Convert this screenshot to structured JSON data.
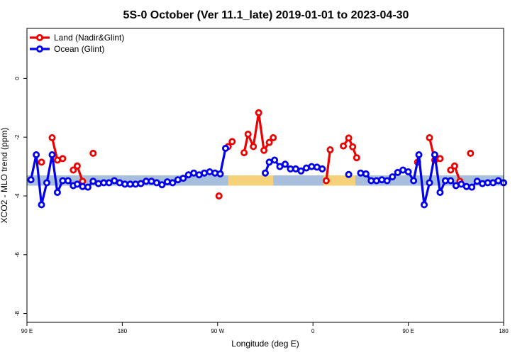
{
  "chart_data": {
    "type": "line",
    "title": "5S-0 October (Ver 11.1_late)   2019-01-01 to 2023-04-30",
    "xlabel": "Longitude (deg E)",
    "ylabel": "XCO2 - MLO trend (ppm)",
    "xlim": [
      0,
      360
    ],
    "ylim": [
      -8.3,
      1.7
    ],
    "x_ticks": [
      {
        "value": 0,
        "label": "90 E"
      },
      {
        "value": 72,
        "label": "180"
      },
      {
        "value": 144,
        "label": "90 W"
      },
      {
        "value": 216,
        "label": "0"
      },
      {
        "value": 288,
        "label": "90 E"
      },
      {
        "value": 360,
        "label": "180"
      }
    ],
    "y_ticks": [
      {
        "value": 0,
        "label": "0"
      },
      {
        "value": -2,
        "label": "-2"
      },
      {
        "value": -4,
        "label": "-4"
      },
      {
        "value": -6,
        "label": "-6"
      },
      {
        "value": -8,
        "label": "-8"
      }
    ],
    "legend": {
      "placement": "top-left",
      "entries": [
        {
          "name": "Land (Nadir&Glint)",
          "color": "#ee0000"
        },
        {
          "name": "Ocean (Glint)",
          "color": "#0000ee"
        }
      ]
    },
    "background_band": {
      "y_range": [
        -3.65,
        -3.3
      ],
      "color": "#a8bedd",
      "land_color": "#f5d27a",
      "land_x_ranges": [
        [
          152,
          186
        ],
        [
          224,
          248
        ]
      ]
    },
    "series": [
      {
        "name": "Land (Nadir&Glint)",
        "color": "#ee0000",
        "segments": [
          [
            [
              11,
              -2.85
            ]
          ],
          [
            [
              19,
              -2.02
            ],
            [
              23,
              -2.78
            ],
            [
              27,
              -2.73
            ]
          ],
          [
            [
              35,
              -3.12
            ],
            [
              38,
              -2.98
            ],
            [
              42,
              -3.5
            ]
          ],
          [
            [
              50,
              -2.55
            ]
          ],
          [
            [
              145,
              -4.0
            ]
          ],
          [
            [
              152,
              -2.32
            ],
            [
              155,
              -2.15
            ]
          ],
          [
            [
              164,
              -2.53
            ],
            [
              167,
              -1.9
            ],
            [
              171,
              -2.32
            ],
            [
              175,
              -1.17
            ],
            [
              179,
              -2.45
            ],
            [
              183,
              -2.18
            ],
            [
              186,
              -2.02
            ]
          ],
          [
            [
              226,
              -3.48
            ],
            [
              229,
              -2.43
            ]
          ],
          [
            [
              239,
              -2.3
            ],
            [
              243,
              -2.03
            ],
            [
              246,
              -2.33
            ],
            [
              249,
              -2.7
            ]
          ],
          [
            [
              295,
              -2.85
            ]
          ],
          [
            [
              304,
              -2.02
            ],
            [
              308,
              -2.78
            ],
            [
              312,
              -2.73
            ]
          ],
          [
            [
              320,
              -3.12
            ],
            [
              323,
              -2.98
            ],
            [
              327,
              -3.5
            ]
          ],
          [
            [
              335,
              -2.55
            ]
          ]
        ]
      },
      {
        "name": "Ocean (Glint)",
        "color": "#0000ee",
        "segments": [
          [
            [
              3,
              -3.45
            ],
            [
              7,
              -2.6
            ],
            [
              11,
              -4.3
            ],
            [
              15,
              -3.55
            ],
            [
              19,
              -2.6
            ],
            [
              23,
              -3.88
            ],
            [
              27,
              -3.48
            ],
            [
              31,
              -3.48
            ],
            [
              35,
              -3.65
            ],
            [
              38,
              -3.6
            ],
            [
              42,
              -3.68
            ],
            [
              46,
              -3.7
            ],
            [
              50,
              -3.5
            ],
            [
              54,
              -3.58
            ],
            [
              58,
              -3.55
            ],
            [
              62,
              -3.55
            ],
            [
              66,
              -3.48
            ],
            [
              70,
              -3.55
            ],
            [
              74,
              -3.6
            ],
            [
              78,
              -3.6
            ],
            [
              82,
              -3.6
            ],
            [
              86,
              -3.58
            ],
            [
              90,
              -3.5
            ],
            [
              94,
              -3.5
            ],
            [
              98,
              -3.55
            ],
            [
              102,
              -3.62
            ],
            [
              106,
              -3.52
            ],
            [
              110,
              -3.55
            ],
            [
              114,
              -3.45
            ],
            [
              118,
              -3.4
            ],
            [
              122,
              -3.28
            ],
            [
              126,
              -3.22
            ],
            [
              130,
              -3.28
            ],
            [
              134,
              -3.22
            ],
            [
              138,
              -3.18
            ],
            [
              142,
              -3.22
            ],
            [
              146,
              -3.25
            ],
            [
              150,
              -2.38
            ]
          ],
          [
            [
              180,
              -3.22
            ],
            [
              183,
              -2.85
            ],
            [
              187,
              -2.78
            ],
            [
              191,
              -3.0
            ],
            [
              195,
              -2.92
            ],
            [
              199,
              -3.08
            ],
            [
              203,
              -3.08
            ],
            [
              207,
              -3.15
            ],
            [
              211,
              -3.05
            ],
            [
              215,
              -3.0
            ],
            [
              219,
              -3.02
            ],
            [
              223,
              -3.08
            ]
          ],
          [
            [
              243,
              -3.27
            ]
          ],
          [
            [
              252,
              -3.22
            ],
            [
              256,
              -3.25
            ],
            [
              260,
              -3.48
            ],
            [
              264,
              -3.48
            ],
            [
              268,
              -3.45
            ],
            [
              272,
              -3.48
            ],
            [
              276,
              -3.35
            ],
            [
              280,
              -3.2
            ],
            [
              284,
              -3.12
            ],
            [
              288,
              -3.18
            ],
            [
              292,
              -3.48
            ],
            [
              296,
              -2.6
            ],
            [
              300,
              -4.3
            ],
            [
              304,
              -3.55
            ],
            [
              308,
              -2.6
            ],
            [
              312,
              -3.88
            ],
            [
              316,
              -3.48
            ],
            [
              320,
              -3.48
            ],
            [
              324,
              -3.65
            ],
            [
              328,
              -3.6
            ],
            [
              332,
              -3.68
            ],
            [
              336,
              -3.7
            ],
            [
              340,
              -3.5
            ],
            [
              344,
              -3.58
            ],
            [
              348,
              -3.55
            ],
            [
              352,
              -3.55
            ],
            [
              356,
              -3.48
            ],
            [
              360,
              -3.55
            ]
          ]
        ]
      }
    ]
  }
}
